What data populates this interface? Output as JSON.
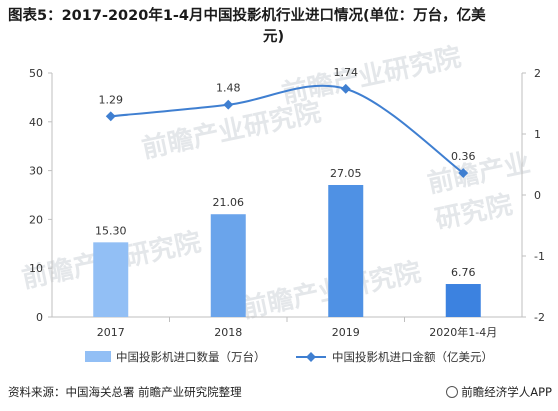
{
  "header": {
    "title_line1": "图表5：2017-2020年1-4月中国投影机行业进口情况(单位：万台，亿美",
    "title_line2": "元)"
  },
  "footer": {
    "source": "资料来源：中国海关总署 前瞻产业研究院整理",
    "brand": "前瞻经济学人APP"
  },
  "watermark": "前瞻产业研究院",
  "chart_data": {
    "type": "bar",
    "categories": [
      "2017",
      "2018",
      "2019",
      "2020年1-4月"
    ],
    "series": [
      {
        "name": "中国投影机进口数量（万台）",
        "type": "bar",
        "axis": "left",
        "values": [
          15.3,
          21.06,
          27.05,
          6.76
        ],
        "labels": [
          "15.30",
          "21.06",
          "27.05",
          "6.76"
        ],
        "colors": [
          "#92bff5",
          "#6aa4eb",
          "#4f91e4",
          "#3c82e0"
        ]
      },
      {
        "name": "中国投影机进口金额（亿美元）",
        "type": "line",
        "axis": "right",
        "values": [
          1.29,
          1.48,
          1.74,
          0.36
        ],
        "labels": [
          "1.29",
          "1.48",
          "1.74",
          "0.36"
        ],
        "color": "#3f7fd1"
      }
    ],
    "y_left": {
      "min": 0,
      "max": 50,
      "ticks": [
        "0",
        "10",
        "20",
        "30",
        "40",
        "50"
      ]
    },
    "y_right": {
      "min": -2,
      "max": 2,
      "ticks": [
        "-2",
        "-1",
        "0",
        "1",
        "2"
      ]
    },
    "grid": false,
    "legend": "bottom"
  }
}
